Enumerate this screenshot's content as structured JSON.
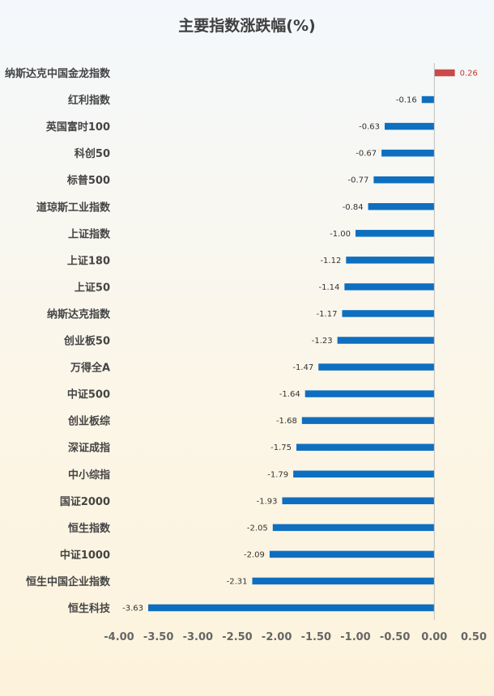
{
  "chart_data": {
    "type": "bar",
    "orientation": "horizontal",
    "title": "主要指数涨跌幅(%)",
    "xlabel": "",
    "ylabel": "",
    "categories": [
      "纳斯达克中国金龙指数",
      "红利指数",
      "英国富时100",
      "科创50",
      "标普500",
      "道琼斯工业指数",
      "上证指数",
      "上证180",
      "上证50",
      "纳斯达克指数",
      "创业板50",
      "万得全A",
      "中证500",
      "创业板综",
      "深证成指",
      "中小综指",
      "国证2000",
      "恒生指数",
      "中证1000",
      "恒生中国企业指数",
      "恒生科技"
    ],
    "values": [
      0.26,
      -0.16,
      -0.63,
      -0.67,
      -0.77,
      -0.84,
      -1.0,
      -1.12,
      -1.14,
      -1.17,
      -1.23,
      -1.47,
      -1.64,
      -1.68,
      -1.75,
      -1.79,
      -1.93,
      -2.05,
      -2.09,
      -2.31,
      -3.63
    ],
    "value_labels": [
      "0.26",
      "-0.16",
      "-0.63",
      "-0.67",
      "-0.77",
      "-0.84",
      "-1.00",
      "-1.12",
      "-1.14",
      "-1.17",
      "-1.23",
      "-1.47",
      "-1.64",
      "-1.68",
      "-1.75",
      "-1.79",
      "-1.93",
      "-2.05",
      "-2.09",
      "-2.31",
      "-3.63"
    ],
    "xlim": [
      -4.0,
      0.5
    ],
    "xticks": [
      "-4.00",
      "-3.50",
      "-3.00",
      "-2.50",
      "-2.00",
      "-1.50",
      "-1.00",
      "-0.50",
      "0.00",
      "0.50"
    ],
    "grid": false,
    "legend": "none",
    "colors": {
      "negative": "#0e6fc0",
      "positive": "#c94a48",
      "axis": "#bfbfbf"
    }
  }
}
